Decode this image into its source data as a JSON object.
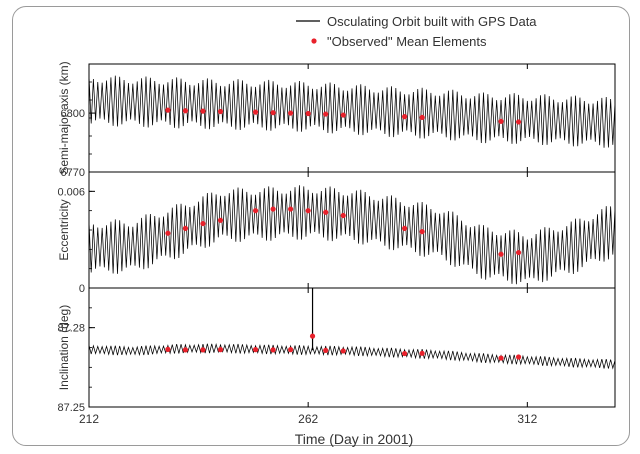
{
  "chart_data": {
    "type": "line",
    "legend": {
      "placement": "top-right",
      "entries": [
        {
          "label": "Osculating Orbit built with GPS Data",
          "marker": "line",
          "color": "#000000"
        },
        {
          "label": "\"Observed\" Mean Elements",
          "marker": "dot",
          "color": "#e8212b"
        }
      ]
    },
    "x_axis": {
      "label": "Time (Day in 2001)",
      "range": [
        212,
        332
      ],
      "ticks": [
        212,
        262,
        312
      ],
      "tick_labels": [
        "212",
        "262",
        "312"
      ]
    },
    "panels": [
      {
        "ylabel": "Semi-major axis (km)",
        "ylim": [
          6770,
          6825
        ],
        "yticks": [
          6770,
          6800
        ],
        "ytick_labels": [
          "6770",
          "6800"
        ],
        "osculating": {
          "days": [
            212,
            227,
            242,
            252,
            262,
            272,
            282,
            292,
            302,
            312,
            322,
            332
          ],
          "mean": [
            6806.5,
            6805.5,
            6804.5,
            6804,
            6803.2,
            6802,
            6800.5,
            6799.5,
            6797.5,
            6797,
            6796,
            6795
          ],
          "amplitude": 13
        },
        "mean_elements": {
          "x": [
            230,
            234,
            238,
            242,
            250,
            254,
            258,
            262,
            266,
            270,
            284,
            288,
            306,
            310
          ],
          "y": [
            6801.5,
            6801.2,
            6801,
            6800.8,
            6800.5,
            6800.2,
            6800,
            6799.8,
            6799.5,
            6799,
            6798.2,
            6797.8,
            6795.8,
            6795.5
          ]
        }
      },
      {
        "ylabel": "Eccentricity",
        "ylim": [
          0,
          0.0072
        ],
        "yticks": [
          0,
          0.006
        ],
        "ytick_labels": [
          "0",
          "0.006"
        ],
        "osculating": {
          "days": [
            212,
            222,
            232,
            242,
            252,
            262,
            272,
            282,
            292,
            302,
            312,
            322,
            332
          ],
          "mean": [
            0.0025,
            0.0026,
            0.0035,
            0.0045,
            0.0046,
            0.0047,
            0.0045,
            0.004,
            0.0034,
            0.0022,
            0.0018,
            0.0025,
            0.0036
          ],
          "amplitude": 0.0017
        },
        "mean_elements": {
          "x": [
            230,
            234,
            238,
            242,
            250,
            254,
            258,
            262,
            266,
            270,
            284,
            288,
            306,
            310
          ],
          "y": [
            0.0034,
            0.0037,
            0.004,
            0.0042,
            0.0048,
            0.0049,
            0.0049,
            0.0048,
            0.0047,
            0.0045,
            0.0037,
            0.0035,
            0.0021,
            0.0022
          ]
        }
      },
      {
        "ylabel": "Inclination (deg)",
        "ylim": [
          87.25,
          87.295
        ],
        "yticks": [
          87.25,
          87.28
        ],
        "ytick_labels": [
          "87.25",
          "87.28"
        ],
        "osculating": {
          "days": [
            212,
            222,
            232,
            242,
            252,
            262,
            272,
            282,
            292,
            302,
            312,
            322,
            332
          ],
          "mean": [
            87.2717,
            87.2712,
            87.272,
            87.2722,
            87.2718,
            87.2715,
            87.2712,
            87.2705,
            87.2698,
            87.2685,
            87.2677,
            87.2668,
            87.2662
          ],
          "amplitude": 0.0018
        },
        "spike": {
          "x": 263,
          "y": 87.2955
        },
        "mean_elements": {
          "x": [
            230,
            234,
            238,
            242,
            250,
            254,
            258,
            263,
            266,
            270,
            284,
            288,
            306,
            310
          ],
          "y": [
            87.2718,
            87.2716,
            87.2716,
            87.2717,
            87.2717,
            87.2716,
            87.2717,
            87.2768,
            87.2714,
            87.2712,
            87.2702,
            87.2703,
            87.2685,
            87.2689
          ]
        }
      }
    ]
  }
}
